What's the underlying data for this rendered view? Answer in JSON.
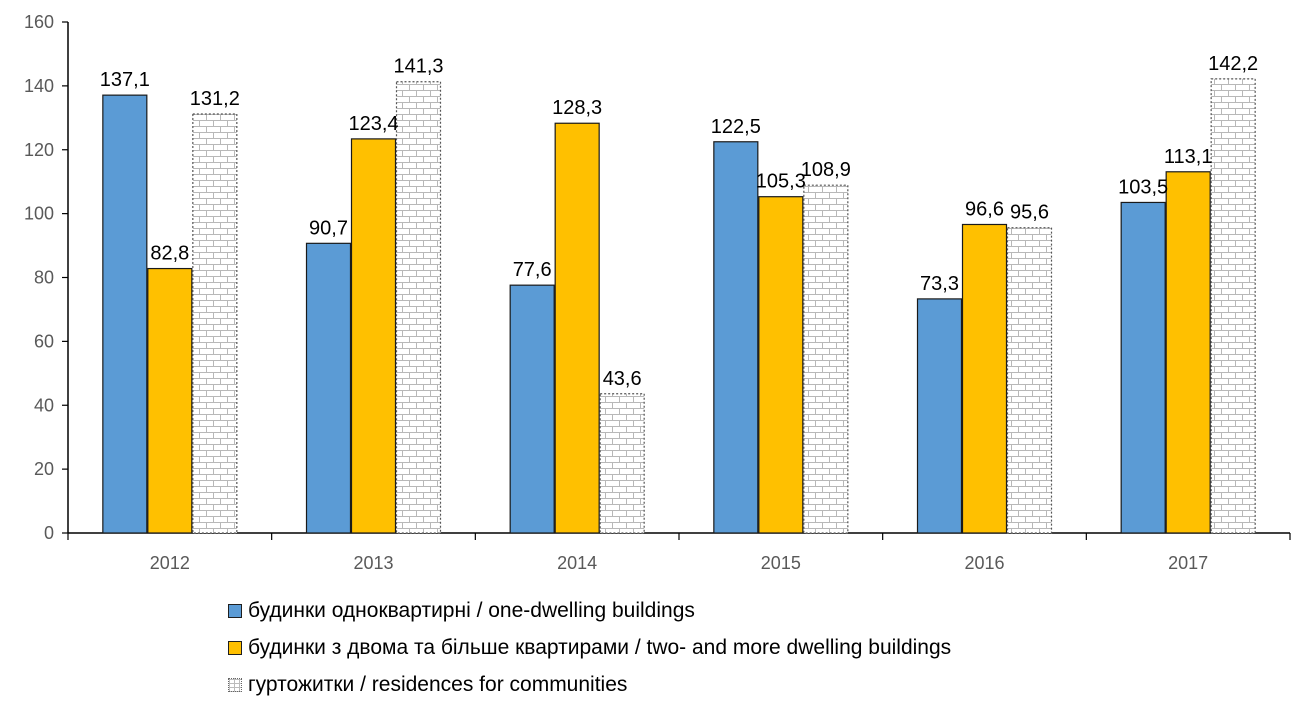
{
  "chart_data": {
    "type": "bar",
    "categories": [
      "2012",
      "2013",
      "2014",
      "2015",
      "2016",
      "2017"
    ],
    "series": [
      {
        "name": "будинки одноквартирні / one-dwelling buildings",
        "values": [
          137.1,
          90.7,
          77.6,
          122.5,
          73.3,
          103.5
        ],
        "labels": [
          "137,1",
          "90,7",
          "77,6",
          "122,5",
          "73,3",
          "103,5"
        ],
        "color": "#5B9BD5",
        "pattern": "solid"
      },
      {
        "name": "будинки з двома та більше квартирами / two- and more dwelling buildings",
        "values": [
          82.8,
          123.4,
          128.3,
          105.3,
          96.6,
          113.1
        ],
        "labels": [
          "82,8",
          "123,4",
          "128,3",
          "105,3",
          "96,6",
          "113,1"
        ],
        "color": "#FFC000",
        "pattern": "solid"
      },
      {
        "name": "гуртожитки / residences for communities",
        "values": [
          131.2,
          141.3,
          43.6,
          108.9,
          95.6,
          142.2
        ],
        "labels": [
          "131,2",
          "141,3",
          "43,6",
          "108,9",
          "95,6",
          "142,2"
        ],
        "color": "#FFFFFF",
        "pattern": "brick"
      }
    ],
    "ylim": [
      0,
      160
    ],
    "yticks": [
      0,
      20,
      40,
      60,
      80,
      100,
      120,
      140,
      160
    ],
    "grid": false,
    "legend_position": "bottom",
    "title": "",
    "xlabel": "",
    "ylabel": ""
  }
}
